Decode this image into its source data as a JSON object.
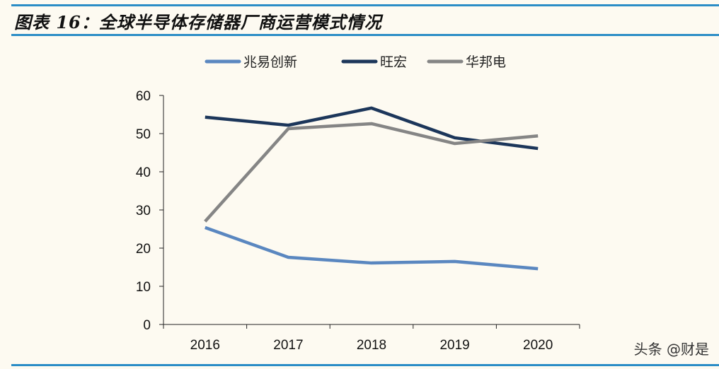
{
  "title": "图表 16：全球半导体存储器厂商运营模式情况",
  "watermark": "头条 @财是",
  "chart_data": {
    "type": "line",
    "title": "",
    "xlabel": "",
    "ylabel": "",
    "categories": [
      "2016",
      "2017",
      "2018",
      "2019",
      "2020"
    ],
    "ylim": [
      0,
      60
    ],
    "yticks": [
      0,
      10,
      20,
      30,
      40,
      50,
      60
    ],
    "grid": false,
    "legend": "top",
    "series": [
      {
        "name": "兆易创新",
        "color": "#5a87c0",
        "values": [
          25.4,
          17.6,
          16.1,
          16.5,
          14.6
        ]
      },
      {
        "name": "旺宏",
        "color": "#1c365a",
        "values": [
          54.3,
          52.2,
          56.7,
          48.9,
          46.1
        ]
      },
      {
        "name": "华邦电",
        "color": "#858585",
        "values": [
          27.0,
          51.3,
          52.6,
          47.4,
          49.4
        ]
      }
    ]
  }
}
